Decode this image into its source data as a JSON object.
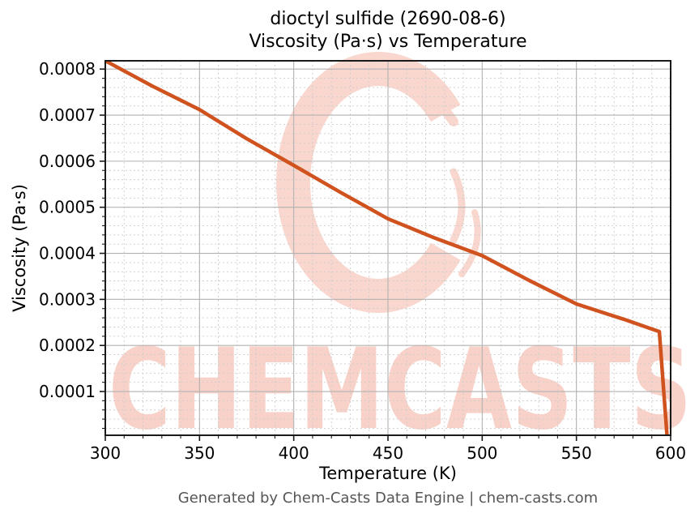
{
  "page": {
    "footer": "Generated by Chem-Casts Data Engine | chem-casts.com"
  },
  "chart_data": {
    "type": "line",
    "title": "dioctyl sulfide (2690-08-6) — Viscosity (Pa·s) vs Temperature",
    "title_line1": "dioctyl sulfide (2690-08-6)",
    "title_line2": "Viscosity (Pa·s) vs Temperature",
    "xlabel": "Temperature (K)",
    "ylabel": "Viscosity (Pa·s)",
    "xlim": [
      300,
      600
    ],
    "ylim": [
      5e-06,
      0.000818
    ],
    "x_major_ticks": [
      300,
      350,
      400,
      450,
      500,
      550,
      600
    ],
    "x_minor_step": 10,
    "y_major_ticks": [
      0.0001,
      0.0002,
      0.0003,
      0.0004,
      0.0005,
      0.0006,
      0.0007,
      0.0008
    ],
    "y_minor_step": 2e-05,
    "grid": true,
    "legend": "none",
    "series": [
      {
        "name": "viscosity",
        "color": "#d0521e",
        "x": [
          300,
          325,
          350,
          375,
          400,
          425,
          450,
          475,
          500,
          525,
          550,
          575,
          594,
          598
        ],
        "y": [
          0.000818,
          0.000763,
          0.000712,
          0.000649,
          0.000591,
          0.000532,
          0.000475,
          0.000433,
          0.000395,
          0.000341,
          0.00029,
          0.000257,
          0.00023,
          8e-06
        ]
      }
    ],
    "watermark": {
      "text": "CHEMCASTS",
      "text_color": "#f8d2c8",
      "logo_color": "#f9d7ce",
      "logo": "brush-ring-c"
    },
    "style": {
      "major_grid_color": "#b2b2b2",
      "minor_grid_color": "#cdcdcd",
      "spine_color": "#1a1a1a",
      "tick_label_color": "#000000"
    }
  }
}
